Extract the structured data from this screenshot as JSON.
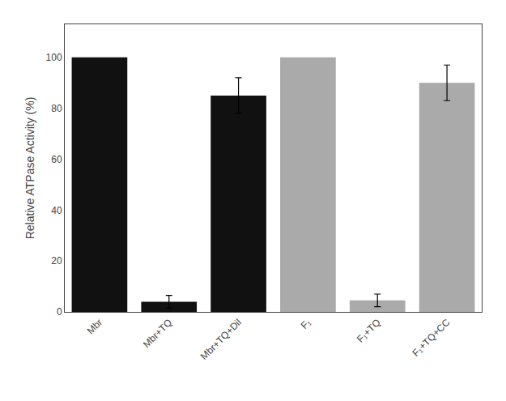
{
  "chart_data": {
    "type": "bar",
    "categories": [
      "Mbr",
      "Mbr+TQ",
      "Mbr+TQ+Dil",
      "F₁",
      "F₁+TQ",
      "F₁+TQ+CC"
    ],
    "values": [
      100,
      4,
      85,
      100,
      4.5,
      90
    ],
    "errors": [
      0,
      2.5,
      7,
      0,
      2.5,
      7
    ],
    "colors": [
      "#111111",
      "#111111",
      "#111111",
      "#aaaaaa",
      "#aaaaaa",
      "#aaaaaa"
    ],
    "ylabel": "Relative ATPase Activity (%)",
    "ylim": [
      0,
      113
    ],
    "yticks": [
      0,
      20,
      40,
      60,
      80,
      100
    ],
    "grid": false
  }
}
